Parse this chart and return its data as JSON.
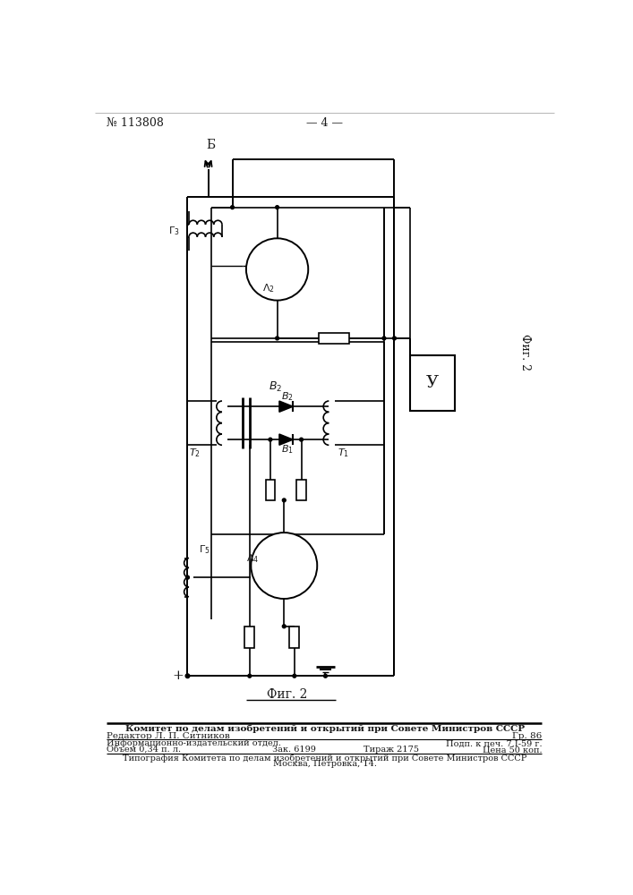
{
  "page_number": "113808",
  "page_label": "— 4 —",
  "fig_label": "Фиг. 2",
  "header_line1": "Комитет по делам изобретений и открытий при Совете Министров СССР",
  "header_line2": "Редактор Л. П. Ситников",
  "header_line2_right": "Гр. 86",
  "row1_left": "Информационно-издательский отдел.",
  "row1_right": "Подп. к печ. 7.I-59 г.",
  "row2_left": "Объем 0,34 п. л.",
  "row2_mid1": "Зак. 6199",
  "row2_mid2": "Тираж 2175",
  "row2_right": "Цена 50 коп.",
  "row3": "Типография Комитета по делам изобретений и открытий при Совете Министров СССР",
  "row4": "Москва, Петровка, 14.",
  "bg_color": "#ffffff",
  "text_color": "#1a1a1a",
  "line_color": "#000000"
}
